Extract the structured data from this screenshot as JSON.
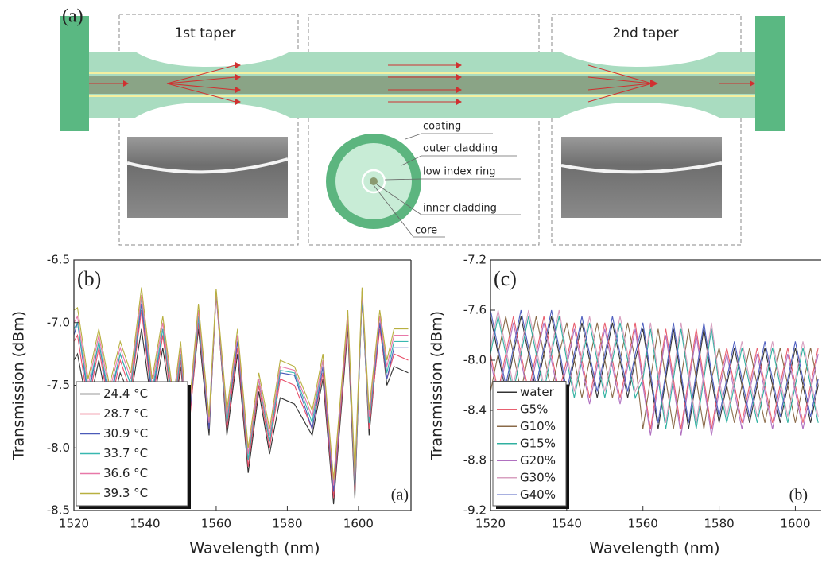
{
  "diagram": {
    "panel_label": "(a)",
    "taper1": "1st taper",
    "taper2": "2nd taper",
    "layers": [
      "coating",
      "outer cladding",
      "low index ring",
      "inner cladding",
      "core"
    ]
  },
  "chart_data": [
    {
      "type": "line",
      "panel_label": "(b)",
      "corner_label": "(a)",
      "x_label": "Wavelength (nm)",
      "y_label": "Transmission (dBm)",
      "xlim": [
        1520,
        1615
      ],
      "xticks": [
        1520,
        1540,
        1560,
        1580,
        1600
      ],
      "ylim": [
        -8.5,
        -6.5
      ],
      "yticks": [
        -8.5,
        {
          "value": -8,
          "label": "-8.0"
        },
        -7.5,
        {
          "value": -7,
          "label": "-7.0"
        },
        -6.5
      ],
      "legend": "lower left",
      "x": [
        1520,
        1521,
        1524,
        1527,
        1530,
        1533,
        1536,
        1539,
        1542,
        1545,
        1548,
        1550,
        1552,
        1555,
        1558,
        1560,
        1563,
        1566,
        1569,
        1572,
        1575,
        1578,
        1582,
        1587,
        1590,
        1593,
        1597,
        1599,
        1601,
        1603,
        1606,
        1608,
        1610,
        1614
      ],
      "series": [
        {
          "name": "24.4 °C",
          "color": "#333333",
          "values": [
            -7.3,
            -7.25,
            -7.7,
            -7.3,
            -7.75,
            -7.4,
            -7.6,
            -7.05,
            -7.7,
            -7.2,
            -7.8,
            -7.35,
            -7.9,
            -7.05,
            -7.9,
            -6.75,
            -7.9,
            -7.25,
            -8.2,
            -7.55,
            -8.05,
            -7.6,
            -7.65,
            -7.9,
            -7.45,
            -8.45,
            -7.05,
            -8.4,
            -6.75,
            -7.9,
            -7.0,
            -7.5,
            -7.35,
            -7.4
          ]
        },
        {
          "name": "28.7 °C",
          "color": "#e8506a",
          "values": [
            -7.15,
            -7.1,
            -7.65,
            -7.2,
            -7.7,
            -7.3,
            -7.55,
            -6.9,
            -7.65,
            -7.1,
            -7.75,
            -7.3,
            -7.95,
            -7.0,
            -7.85,
            -6.78,
            -7.85,
            -7.2,
            -8.15,
            -7.5,
            -8.0,
            -7.45,
            -7.5,
            -7.85,
            -7.4,
            -8.4,
            -7.0,
            -8.35,
            -6.8,
            -7.85,
            -7.05,
            -7.45,
            -7.25,
            -7.3
          ]
        },
        {
          "name": "30.9 °C",
          "color": "#4a5ab8",
          "values": [
            -7.1,
            -7.0,
            -7.6,
            -7.15,
            -7.65,
            -7.25,
            -7.5,
            -6.85,
            -7.6,
            -7.05,
            -7.7,
            -7.25,
            -7.9,
            -6.95,
            -7.85,
            -6.76,
            -7.8,
            -7.15,
            -8.1,
            -7.45,
            -7.95,
            -7.4,
            -7.42,
            -7.85,
            -7.35,
            -8.35,
            -6.95,
            -8.3,
            -6.8,
            -7.8,
            -7.0,
            -7.45,
            -7.2,
            -7.2
          ]
        },
        {
          "name": "33.7 °C",
          "color": "#38b8b0",
          "values": [
            -7.05,
            -7.0,
            -7.55,
            -7.15,
            -7.6,
            -7.25,
            -7.5,
            -6.8,
            -7.55,
            -7.05,
            -7.7,
            -7.25,
            -7.85,
            -6.95,
            -7.8,
            -6.75,
            -7.8,
            -7.1,
            -8.1,
            -7.45,
            -7.95,
            -7.38,
            -7.4,
            -7.8,
            -7.3,
            -8.3,
            -6.95,
            -8.3,
            -6.78,
            -7.8,
            -6.95,
            -7.4,
            -7.15,
            -7.15
          ]
        },
        {
          "name": "36.6 °C",
          "color": "#e878a8",
          "values": [
            -7.0,
            -6.95,
            -7.5,
            -7.1,
            -7.55,
            -7.2,
            -7.45,
            -6.78,
            -7.5,
            -7.0,
            -7.65,
            -7.2,
            -7.85,
            -6.9,
            -7.8,
            -6.75,
            -7.75,
            -7.1,
            -8.05,
            -7.45,
            -7.9,
            -7.35,
            -7.38,
            -7.75,
            -7.3,
            -8.3,
            -6.95,
            -8.25,
            -6.75,
            -7.75,
            -6.95,
            -7.35,
            -7.1,
            -7.1
          ]
        },
        {
          "name": "39.3 °C",
          "color": "#b8b040",
          "values": [
            -6.9,
            -6.88,
            -7.45,
            -7.05,
            -7.5,
            -7.15,
            -7.4,
            -6.72,
            -7.45,
            -6.95,
            -7.6,
            -7.15,
            -7.8,
            -6.85,
            -7.75,
            -6.73,
            -7.7,
            -7.05,
            -8.0,
            -7.4,
            -7.85,
            -7.3,
            -7.35,
            -7.7,
            -7.25,
            -8.25,
            -6.9,
            -8.2,
            -6.72,
            -7.7,
            -6.9,
            -7.3,
            -7.05,
            -7.05
          ]
        }
      ]
    },
    {
      "type": "line",
      "panel_label": "(c)",
      "corner_label": "(b)",
      "x_label": "Wavelength (nm)",
      "y_label": "Transmission (dBm)",
      "xlim": [
        1520,
        1607
      ],
      "xticks": [
        1520,
        1540,
        1560,
        1580,
        1600
      ],
      "ylim": [
        -9.2,
        -7.2
      ],
      "yticks": [
        -9.2,
        -8.8,
        -8.4,
        {
          "value": -8,
          "label": "-8.0"
        },
        -7.6,
        -7.2
      ],
      "legend": "lower left",
      "x": [
        1520,
        1522,
        1524,
        1526,
        1528,
        1530,
        1532,
        1534,
        1536,
        1538,
        1540,
        1542,
        1544,
        1546,
        1548,
        1550,
        1552,
        1554,
        1556,
        1558,
        1560,
        1562,
        1564,
        1566,
        1568,
        1570,
        1572,
        1574,
        1576,
        1578,
        1580,
        1582,
        1584,
        1586,
        1588,
        1590,
        1592,
        1594,
        1596,
        1598,
        1600,
        1602,
        1604,
        1606
      ],
      "series": [
        {
          "name": "water",
          "color": "#333333",
          "values": [
            -7.65,
            -7.95,
            -8.25,
            -7.95,
            -7.65,
            -7.95,
            -8.25,
            -7.95,
            -7.65,
            -7.95,
            -8.3,
            -8.0,
            -7.7,
            -8.0,
            -8.3,
            -8.0,
            -7.7,
            -8.0,
            -8.3,
            -8.0,
            -7.75,
            -8.15,
            -8.55,
            -8.15,
            -7.75,
            -8.15,
            -8.55,
            -8.15,
            -7.75,
            -8.15,
            -8.5,
            -8.2,
            -7.9,
            -8.2,
            -8.5,
            -8.2,
            -7.9,
            -8.2,
            -8.5,
            -8.2,
            -7.9,
            -8.2,
            -8.5,
            -8.2
          ]
        },
        {
          "name": "G5%",
          "color": "#e86070",
          "values": [
            -7.95,
            -8.25,
            -7.95,
            -7.65,
            -7.95,
            -8.25,
            -7.95,
            -7.65,
            -7.95,
            -8.25,
            -8.0,
            -7.7,
            -8.0,
            -8.3,
            -8.0,
            -7.7,
            -8.0,
            -8.3,
            -8.0,
            -7.7,
            -8.15,
            -8.55,
            -8.15,
            -7.75,
            -8.15,
            -8.55,
            -8.15,
            -7.75,
            -8.15,
            -8.55,
            -8.2,
            -7.9,
            -8.2,
            -8.5,
            -8.2,
            -7.9,
            -8.2,
            -8.5,
            -8.2,
            -7.9,
            -8.2,
            -8.5,
            -8.2,
            -7.9
          ]
        },
        {
          "name": "G10%",
          "color": "#8a6a48",
          "values": [
            -8.25,
            -7.95,
            -7.65,
            -7.95,
            -8.25,
            -7.95,
            -7.65,
            -7.95,
            -8.25,
            -7.95,
            -7.7,
            -8.0,
            -8.3,
            -8.0,
            -7.7,
            -8.0,
            -8.3,
            -8.0,
            -7.7,
            -8.0,
            -8.55,
            -8.15,
            -7.75,
            -8.15,
            -8.55,
            -8.15,
            -7.75,
            -8.15,
            -8.55,
            -8.15,
            -7.9,
            -8.2,
            -8.5,
            -8.2,
            -7.9,
            -8.2,
            -8.5,
            -8.2,
            -7.9,
            -8.2,
            -8.5,
            -8.2,
            -7.9,
            -8.2
          ]
        },
        {
          "name": "G15%",
          "color": "#30b0a0",
          "values": [
            -7.95,
            -7.65,
            -7.95,
            -8.25,
            -7.95,
            -7.65,
            -7.95,
            -8.25,
            -7.95,
            -7.65,
            -8.0,
            -8.3,
            -8.0,
            -7.7,
            -8.0,
            -8.3,
            -8.0,
            -7.7,
            -8.0,
            -8.3,
            -8.15,
            -7.75,
            -8.15,
            -8.55,
            -8.15,
            -7.75,
            -8.15,
            -8.55,
            -8.15,
            -7.75,
            -8.2,
            -8.5,
            -8.2,
            -7.9,
            -8.2,
            -8.5,
            -8.2,
            -7.9,
            -8.2,
            -8.5,
            -8.2,
            -7.9,
            -8.2,
            -8.5
          ]
        },
        {
          "name": "G20%",
          "color": "#b070c0",
          "values": [
            -8.0,
            -8.3,
            -8.0,
            -7.7,
            -8.0,
            -8.3,
            -8.0,
            -7.7,
            -8.0,
            -8.3,
            -8.05,
            -7.75,
            -8.05,
            -8.35,
            -8.05,
            -7.75,
            -8.05,
            -8.35,
            -8.05,
            -7.75,
            -8.2,
            -8.6,
            -8.2,
            -7.8,
            -8.2,
            -8.6,
            -8.2,
            -7.8,
            -8.2,
            -8.6,
            -8.25,
            -7.95,
            -8.25,
            -8.55,
            -8.25,
            -7.95,
            -8.25,
            -8.55,
            -8.25,
            -7.95,
            -8.25,
            -8.55,
            -8.25,
            -7.95
          ]
        },
        {
          "name": "G30%",
          "color": "#d8a0c0",
          "values": [
            -7.9,
            -7.6,
            -7.9,
            -8.2,
            -7.9,
            -7.6,
            -7.9,
            -8.2,
            -7.9,
            -7.6,
            -7.95,
            -8.25,
            -7.95,
            -7.65,
            -7.95,
            -8.25,
            -7.95,
            -7.65,
            -7.95,
            -8.25,
            -8.1,
            -7.7,
            -8.1,
            -8.5,
            -8.1,
            -7.7,
            -8.1,
            -8.5,
            -8.1,
            -7.7,
            -8.15,
            -8.45,
            -8.15,
            -7.85,
            -8.15,
            -8.45,
            -8.15,
            -7.85,
            -8.15,
            -8.45,
            -8.15,
            -7.85,
            -8.15,
            -8.45
          ]
        },
        {
          "name": "G40%",
          "color": "#5060c0",
          "values": [
            -7.6,
            -7.9,
            -8.2,
            -7.9,
            -7.6,
            -7.9,
            -8.2,
            -7.9,
            -7.6,
            -7.9,
            -8.25,
            -7.95,
            -7.65,
            -7.95,
            -8.25,
            -7.95,
            -7.65,
            -7.95,
            -8.25,
            -7.95,
            -7.7,
            -8.1,
            -8.5,
            -8.1,
            -7.7,
            -8.1,
            -8.5,
            -8.1,
            -7.7,
            -8.1,
            -8.45,
            -8.15,
            -7.85,
            -8.15,
            -8.45,
            -8.15,
            -7.85,
            -8.15,
            -8.45,
            -8.15,
            -7.85,
            -8.15,
            -8.45,
            -8.15
          ]
        }
      ]
    }
  ]
}
